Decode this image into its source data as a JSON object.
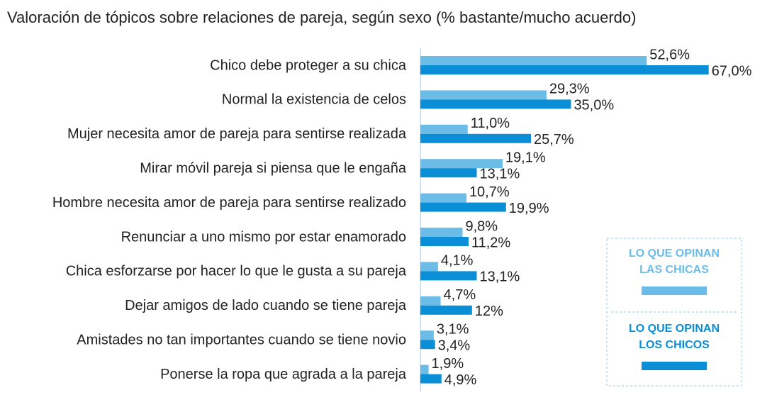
{
  "chart_data": {
    "type": "bar",
    "orientation": "horizontal",
    "title": "Valoración de tópicos sobre relaciones de pareja, según sexo (% bastante/mucho acuerdo)",
    "categories": [
      "Chico debe proteger a su chica",
      "Normal la existencia de celos",
      "Mujer necesita amor de pareja para sentirse realizada",
      "Mirar móvil pareja si piensa que le engaña",
      "Hombre necesita amor de pareja para sentirse realizado",
      "Renunciar a uno mismo por estar enamorado",
      "Chica esforzarse por hacer lo que le gusta a su pareja",
      "Dejar amigos de lado cuando se tiene pareja",
      "Amistades no tan importantes cuando se tiene novio",
      "Ponerse la ropa que agrada a la pareja"
    ],
    "series": [
      {
        "name": "LO QUE OPINAN LAS CHICAS",
        "color": "#6cbce8",
        "values": [
          52.6,
          29.3,
          11.0,
          19.1,
          10.7,
          9.8,
          4.1,
          4.7,
          3.1,
          1.9
        ],
        "value_labels": [
          "52,6%",
          "29,3%",
          "11,0%",
          "19,1%",
          "10,7%",
          "9,8%",
          "4,1%",
          "4,7%",
          "3,1%",
          "1,9%"
        ]
      },
      {
        "name": "LO QUE OPINAN LOS CHICOS",
        "color": "#0a8fd6",
        "values": [
          67.0,
          35.0,
          25.7,
          13.1,
          19.9,
          11.2,
          13.1,
          12,
          3.4,
          4.9
        ],
        "value_labels": [
          "67,0%",
          "35,0%",
          "25,7%",
          "13,1%",
          "19,9%",
          "11,2%",
          "13,1%",
          "12%",
          "3,4%",
          "4,9%"
        ]
      }
    ],
    "legend": "bottom-right"
  }
}
